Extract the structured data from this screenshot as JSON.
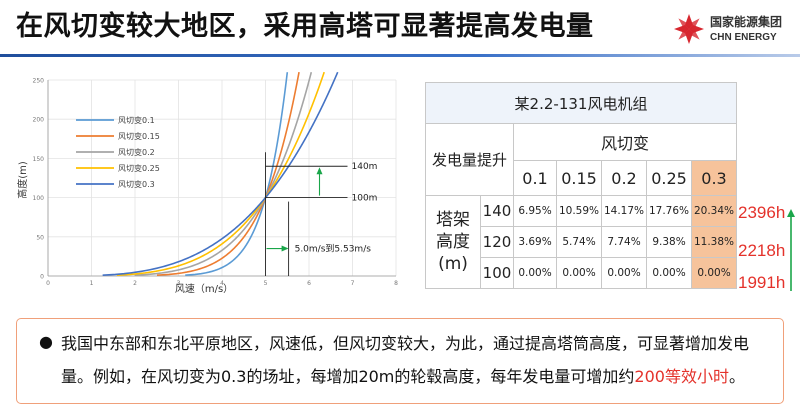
{
  "header": {
    "title": "在风切变较大地区，采用高塔可显著提高发电量",
    "logo": {
      "cn": "国家能源集团",
      "en": "CHN ENERGY"
    }
  },
  "colors": {
    "accent_blue": "#1f4e9c",
    "highlight_orange": "#f6c39b",
    "emphasis_red": "#e4322b",
    "annotation_green": "#1aa64a"
  },
  "chart_data": {
    "type": "line",
    "title": "",
    "xlabel": "风速（m/s）",
    "ylabel": "高度(m)",
    "xlim": [
      0,
      8
    ],
    "ylim": [
      0,
      250
    ],
    "x_ticks": [
      0,
      1,
      2,
      3,
      4,
      5,
      6,
      7,
      8
    ],
    "y_ticks": [
      0,
      50,
      100,
      150,
      200,
      250
    ],
    "grid": true,
    "legend_position": "top-left",
    "reference": {
      "wind_speed": 5,
      "height": 100
    },
    "series": [
      {
        "name": "风切变0.1",
        "color": "#5b9bd5",
        "shear": 0.1
      },
      {
        "name": "风切变0.15",
        "color": "#ed7d31",
        "shear": 0.15
      },
      {
        "name": "风切变0.2",
        "color": "#a5a5a5",
        "shear": 0.2
      },
      {
        "name": "风切变0.25",
        "color": "#ffc000",
        "shear": 0.25
      },
      {
        "name": "风切变0.3",
        "color": "#4472c4",
        "shear": 0.3
      }
    ],
    "annotations": {
      "label_140": "140m",
      "label_100": "100m",
      "speed_change": "5.0m/s到5.53m/s"
    }
  },
  "table": {
    "title": "某2.2-131风电机组",
    "corner": "发电量提升",
    "shear_header": "风切变",
    "shear_values": [
      "0.1",
      "0.15",
      "0.2",
      "0.25",
      "0.3"
    ],
    "side_label": [
      "塔架",
      "高度",
      "(m)"
    ],
    "rows": [
      {
        "height": "140",
        "values": [
          "6.95%",
          "10.59%",
          "14.17%",
          "17.76%",
          "20.34%"
        ],
        "hours": "2396h"
      },
      {
        "height": "120",
        "values": [
          "3.69%",
          "5.74%",
          "7.74%",
          "9.38%",
          "11.38%"
        ],
        "hours": "2218h"
      },
      {
        "height": "100",
        "values": [
          "0.00%",
          "0.00%",
          "0.00%",
          "0.00%",
          "0.00%"
        ],
        "hours": "1991h"
      }
    ]
  },
  "note": {
    "bullet": "●",
    "text": "我国中东部和东北平原地区，风速低，但风切变较大，为此，通过提高塔筒高度，可显著增加发电量。例如，在风切变为0.3的场址，每增加20m的轮毂高度，每年发电量可增加约",
    "highlight": "200等效小时",
    "end": "。"
  }
}
